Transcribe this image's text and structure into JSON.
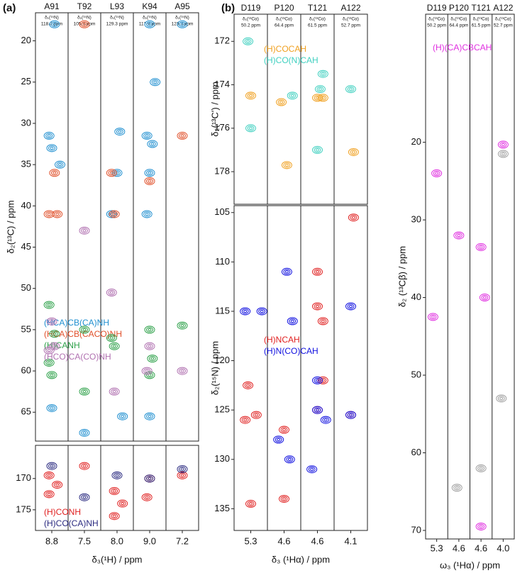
{
  "panels": [
    {
      "label": "(a)",
      "y_label": "δ₂(¹³C) / ppm",
      "x_label": "δ₃(¹H) / ppm",
      "strips": [
        {
          "residue": "A91",
          "header": "δ₁(¹⁵N)",
          "shift": "118.0 ppm",
          "tick": 8.8,
          "xlim": [
            9.1,
            8.5
          ]
        },
        {
          "residue": "T92",
          "header": "δ₁(¹⁵N)",
          "shift": "105.8 ppm",
          "tick": 7.5,
          "xlim": [
            7.8,
            7.2
          ]
        },
        {
          "residue": "L93",
          "header": "δ₁(¹⁵N)",
          "shift": "129.3 ppm",
          "tick": {
            "value": 8,
            "label": "8.0"
          },
          "xlim": [
            8.3,
            7.7
          ]
        },
        {
          "residue": "K94",
          "header": "δ₁(¹⁵N)",
          "shift": "117.9 ppm",
          "tick": {
            "value": 9,
            "label": "9.0"
          },
          "xlim": [
            9.3,
            8.7
          ]
        },
        {
          "residue": "A95",
          "header": "δ₁(¹⁵N)",
          "shift": "123.3 ppm",
          "tick": 7.2,
          "xlim": [
            7.5,
            6.9
          ]
        }
      ],
      "plots": [
        {
          "ylim": [
            16.6,
            68.5
          ],
          "yticks": [
            20,
            25,
            30,
            35,
            40,
            45,
            50,
            55,
            60,
            65
          ],
          "series": [
            {
              "name": "(HCA)CB(CA)NH",
              "color": "#1f8fd0",
              "peaks": [
                [
                  0,
                  8.75,
                  18
                ],
                [
                  0,
                  8.85,
                  31.5
                ],
                [
                  0,
                  8.8,
                  33
                ],
                [
                  0,
                  8.65,
                  35
                ],
                [
                  0,
                  8.8,
                  64.5
                ],
                [
                  1,
                  7.5,
                  67.5
                ],
                [
                  2,
                  8.0,
                  36
                ],
                [
                  2,
                  7.95,
                  31
                ],
                [
                  2,
                  8.1,
                  41
                ],
                [
                  2,
                  7.9,
                  65.5
                ],
                [
                  3,
                  9.0,
                  18
                ],
                [
                  3,
                  9.05,
                  31.5
                ],
                [
                  3,
                  8.95,
                  32.5
                ],
                [
                  3,
                  9.0,
                  36
                ],
                [
                  3,
                  9.05,
                  41
                ],
                [
                  3,
                  8.9,
                  25
                ],
                [
                  3,
                  9.0,
                  65.5
                ],
                [
                  4,
                  7.2,
                  18
                ]
              ]
            },
            {
              "name": "(HCA)CB(CACO)NH",
              "color": "#e0502a",
              "peaks": [
                [
                  0,
                  8.85,
                  41
                ],
                [
                  0,
                  8.7,
                  41
                ],
                [
                  0,
                  8.75,
                  36
                ],
                [
                  1,
                  7.5,
                  18
                ],
                [
                  2,
                  8.05,
                  41
                ],
                [
                  2,
                  8.1,
                  36
                ],
                [
                  3,
                  9.0,
                  37
                ],
                [
                  4,
                  7.2,
                  31.5
                ]
              ]
            },
            {
              "name": "(H)CANH",
              "color": "#2ca048",
              "peaks": [
                [
                  0,
                  8.85,
                  52
                ],
                [
                  0,
                  8.75,
                  55.5
                ],
                [
                  0,
                  8.85,
                  59
                ],
                [
                  0,
                  8.8,
                  60.5
                ],
                [
                  1,
                  7.5,
                  55
                ],
                [
                  1,
                  7.5,
                  62.5
                ],
                [
                  2,
                  8.1,
                  56
                ],
                [
                  2,
                  8.05,
                  57
                ],
                [
                  3,
                  9.0,
                  55
                ],
                [
                  3,
                  8.95,
                  58.5
                ],
                [
                  3,
                  9.0,
                  60.5
                ],
                [
                  4,
                  7.2,
                  54.5
                ]
              ]
            },
            {
              "name": "(HCO)CA(CO)NH",
              "color": "#b070b0",
              "peaks": [
                [
                  0,
                  8.8,
                  54
                ],
                [
                  0,
                  8.75,
                  57
                ],
                [
                  0,
                  8.85,
                  57.5
                ],
                [
                  1,
                  7.5,
                  43
                ],
                [
                  2,
                  8.1,
                  50.5
                ],
                [
                  2,
                  8.05,
                  62.5
                ],
                [
                  3,
                  9.0,
                  57
                ],
                [
                  3,
                  9.05,
                  60
                ],
                [
                  4,
                  7.2,
                  60
                ]
              ]
            }
          ]
        },
        {
          "ylim": [
            164.7,
            178.3
          ],
          "yticks": [
            170,
            175
          ],
          "series": [
            {
              "name": "(H)CONH",
              "color": "#e02020",
              "peaks": [
                [
                  0,
                  8.85,
                  169.5
                ],
                [
                  0,
                  8.85,
                  172.5
                ],
                [
                  0,
                  8.7,
                  171
                ],
                [
                  1,
                  7.5,
                  168
                ],
                [
                  2,
                  8.05,
                  172
                ],
                [
                  2,
                  7.9,
                  174
                ],
                [
                  2,
                  8.05,
                  176
                ],
                [
                  3,
                  9.0,
                  170
                ],
                [
                  3,
                  9.05,
                  173
                ],
                [
                  4,
                  7.2,
                  169.5
                ]
              ]
            },
            {
              "name": "(H)CO(CA)NH",
              "color": "#2a2a80",
              "peaks": [
                [
                  0,
                  8.8,
                  168
                ],
                [
                  1,
                  7.5,
                  173
                ],
                [
                  2,
                  8.0,
                  169.5
                ],
                [
                  3,
                  9.0,
                  170
                ],
                [
                  4,
                  7.2,
                  168.5
                ]
              ]
            }
          ]
        }
      ]
    },
    {
      "label": "(b)",
      "x_label": "δ₃ (¹Hα) / ppm",
      "strips": [
        {
          "residue": "D119",
          "header": "δ₁(¹³Cα)",
          "shift": "50.2 ppm",
          "tick": 5.3,
          "xlim": [
            5.6,
            5.0
          ]
        },
        {
          "residue": "P120",
          "header": "δ₁(¹³Cα)",
          "shift": "64.4 ppm",
          "tick": 4.6,
          "xlim": [
            4.9,
            4.3
          ]
        },
        {
          "residue": "T121",
          "header": "δ₁(¹³Cα)",
          "shift": "61.5 ppm",
          "tick": 4.6,
          "xlim": [
            4.9,
            4.3
          ]
        },
        {
          "residue": "A122",
          "header": "δ₁(¹³Cα)",
          "shift": "52.7 ppm",
          "tick": 4.1,
          "xlim": [
            4.4,
            3.8
          ]
        }
      ],
      "plots": [
        {
          "y_label": "δ₂(¹³C') / ppm",
          "ylim": [
            170.75,
            179.5
          ],
          "yticks": [
            172,
            174,
            176,
            178
          ],
          "series": [
            {
              "name": "(H)COCAH",
              "color": "#f0a020",
              "peaks": [
                [
                  0,
                  5.3,
                  174.5
                ],
                [
                  1,
                  4.65,
                  174.8
                ],
                [
                  1,
                  4.55,
                  177.7
                ],
                [
                  2,
                  4.6,
                  174.6
                ],
                [
                  2,
                  4.5,
                  174.6
                ],
                [
                  3,
                  4.05,
                  177.1
                ]
              ]
            },
            {
              "name": "(H)CO(N)CAH",
              "color": "#40d0c0",
              "peaks": [
                [
                  0,
                  5.35,
                  172
                ],
                [
                  0,
                  5.3,
                  176
                ],
                [
                  1,
                  4.45,
                  174.5
                ],
                [
                  2,
                  4.6,
                  177
                ],
                [
                  2,
                  4.55,
                  174.2
                ],
                [
                  2,
                  4.5,
                  173.5
                ],
                [
                  3,
                  4.1,
                  174.2
                ]
              ]
            }
          ]
        },
        {
          "y_label": "δ₂(¹⁵N) / ppm",
          "ylim": [
            104.3,
            137.2
          ],
          "yticks": [
            105,
            110,
            115,
            120,
            125,
            130,
            135
          ],
          "series": [
            {
              "name": "(H)NCAH",
              "color": "#e02020",
              "peaks": [
                [
                  0,
                  5.35,
                  122.5
                ],
                [
                  0,
                  5.2,
                  125.5
                ],
                [
                  0,
                  5.4,
                  126
                ],
                [
                  0,
                  5.3,
                  134.5
                ],
                [
                  1,
                  4.6,
                  134
                ],
                [
                  1,
                  4.6,
                  127
                ],
                [
                  2,
                  4.6,
                  111
                ],
                [
                  2,
                  4.6,
                  114.5
                ],
                [
                  2,
                  4.5,
                  116
                ],
                [
                  2,
                  4.6,
                  125
                ],
                [
                  2,
                  4.5,
                  122
                ],
                [
                  3,
                  4.1,
                  125.5
                ],
                [
                  3,
                  4.05,
                  105.5
                ]
              ]
            },
            {
              "name": "(H)N(CO)CAH",
              "color": "#1010e0",
              "peaks": [
                [
                  0,
                  5.4,
                  115
                ],
                [
                  0,
                  5.1,
                  115
                ],
                [
                  1,
                  4.55,
                  111
                ],
                [
                  1,
                  4.7,
                  128
                ],
                [
                  1,
                  4.45,
                  116
                ],
                [
                  1,
                  4.5,
                  130
                ],
                [
                  2,
                  4.6,
                  125
                ],
                [
                  2,
                  4.45,
                  126
                ],
                [
                  2,
                  4.6,
                  122
                ],
                [
                  2,
                  4.7,
                  131
                ],
                [
                  3,
                  4.1,
                  125.5
                ],
                [
                  3,
                  4.1,
                  114.5
                ]
              ]
            }
          ]
        }
      ]
    },
    {
      "x_label": "ω₃ (¹Hα) / ppm",
      "strips": [
        {
          "residue": "D119",
          "header": "δ₁(¹³Cα)",
          "shift": "50.2 ppm",
          "tick": 5.3,
          "xlim": [
            5.6,
            5.0
          ]
        },
        {
          "residue": "P120",
          "header": "δ₁(¹³Cα)",
          "shift": "64.4 ppm",
          "tick": 4.6,
          "xlim": [
            4.9,
            4.3
          ]
        },
        {
          "residue": "T121",
          "header": "δ₁(¹³Cα)",
          "shift": "61.5 ppm",
          "tick": 4.6,
          "xlim": [
            4.9,
            4.3
          ]
        },
        {
          "residue": "A122",
          "header": "δ₁(¹³Cα)",
          "shift": "52.7 ppm",
          "tick": {
            "value": 4,
            "label": "4.0"
          },
          "xlim": [
            4.3,
            3.7
          ]
        }
      ],
      "plots": [
        {
          "y_label": "δ₂ (¹³Cβ) / ppm",
          "ylim": [
            3.5,
            71.1
          ],
          "yticks": [
            20,
            30,
            40,
            50,
            60,
            70
          ],
          "series": [
            {
              "name": "(H)(CA)CBCAH",
              "color": "#e030e0",
              "peaks": [
                [
                  0,
                  5.3,
                  24
                ],
                [
                  0,
                  5.4,
                  42.5
                ],
                [
                  1,
                  4.6,
                  32
                ],
                [
                  2,
                  4.6,
                  33.5
                ],
                [
                  2,
                  4.5,
                  40
                ],
                [
                  2,
                  4.6,
                  69.5
                ],
                [
                  3,
                  4.0,
                  20.3
                ]
              ]
            },
            {
              "color": "#a0a0a0",
              "peaks": [
                [
                  3,
                  4.05,
                  53
                ],
                [
                  2,
                  4.6,
                  62
                ],
                [
                  1,
                  4.65,
                  64.5
                ],
                [
                  3,
                  4.0,
                  21.5
                ]
              ]
            }
          ]
        }
      ]
    }
  ]
}
